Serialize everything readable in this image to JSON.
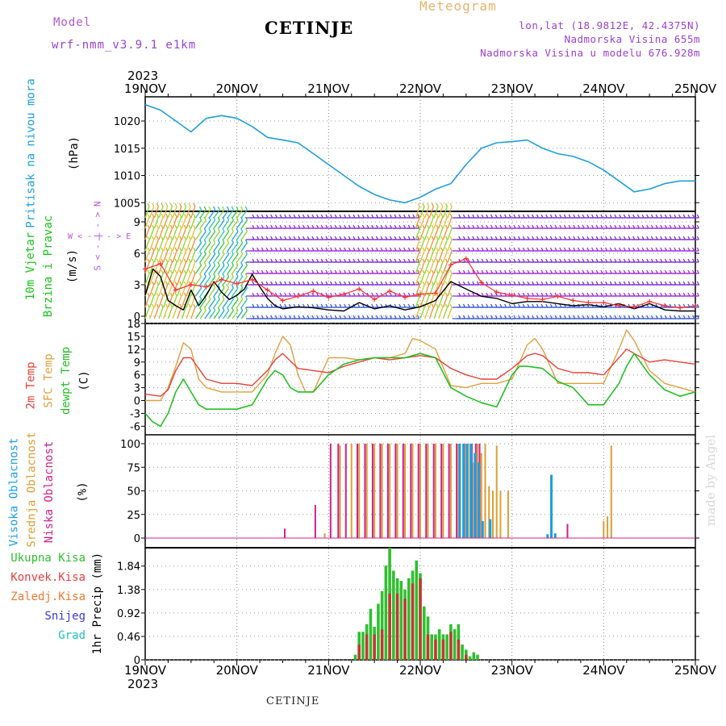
{
  "header": {
    "model_label": "Model",
    "model_name": "wrf-nmm_v3.9.1 e1km",
    "station": "CETINJE",
    "product": "Meteogram",
    "lonlat": "lon,lat (18.9812E, 42.4375N)",
    "elevation": "Nadmorska Visina 655m",
    "model_elevation": "Nadmorska Visina u modelu 676.928m"
  },
  "footer": {
    "station": "CETINJE",
    "credit": "made by Angel"
  },
  "time_axis": {
    "year": "2023",
    "days": [
      "19NOV",
      "20NOV",
      "21NOV",
      "22NOV",
      "23NOV",
      "24NOV",
      "25NOV"
    ]
  },
  "panel_labels": {
    "pressure": [
      {
        "text": "Pritisak na nivou mora",
        "color": "#1e9ee0"
      },
      {
        "text": "(hPa)",
        "color": "#000000"
      }
    ],
    "wind": [
      {
        "text": "10m Vjetar",
        "color": "#19c219"
      },
      {
        "text": "Brzina i Pravac",
        "color": "#19c219"
      },
      {
        "text": "(m/s)",
        "color": "#000000"
      }
    ],
    "wind_rose": [
      "W < - | - > E",
      "S < - | - > N"
    ],
    "temp": [
      {
        "text": "2m Temp",
        "color": "#e8423a"
      },
      {
        "text": "SFC Temp",
        "color": "#e0a040"
      },
      {
        "text": "dewpt Temp",
        "color": "#22c022"
      },
      {
        "text": "(C)",
        "color": "#000000"
      }
    ],
    "cloud": [
      {
        "text": "Visoka Oblacnost",
        "color": "#1e9ee0"
      },
      {
        "text": "Srednja Oblacnost",
        "color": "#d9a035"
      },
      {
        "text": "Niska Oblacnost",
        "color": "#d0208a"
      },
      {
        "text": "(%)",
        "color": "#000000"
      }
    ],
    "precip_axis": "1hr Precip (mm)",
    "precip_legend": [
      {
        "text": "Ukupna Kisa",
        "color": "#2fbf2f"
      },
      {
        "text": "Konvek.Kisa",
        "color": "#e84040"
      },
      {
        "text": "Zaledj.Kisa",
        "color": "#f07830"
      },
      {
        "text": "Snijeg",
        "color": "#3a3ad8"
      },
      {
        "text": "Grad",
        "color": "#20c0c0"
      }
    ]
  },
  "colors": {
    "pressure": "#1e9ee0",
    "t2m": "#e8423a",
    "tsfc": "#e0a040",
    "dew": "#22c022",
    "wind_speed": "#000000",
    "gust": "#ff3030",
    "cloud_high": "#1e9ee0",
    "cloud_mid": "#d9a035",
    "cloud_low": "#d0208a",
    "precip_total": "#2fbf2f",
    "precip_conv": "#c03a30"
  },
  "chart_data": [
    {
      "type": "line",
      "name": "pressure",
      "xlim": [
        0,
        144
      ],
      "ylim": [
        1004,
        1024
      ],
      "yticks": [
        1005,
        1010,
        1015,
        1020
      ],
      "series": [
        {
          "x": [
            0,
            4,
            8,
            12,
            16,
            20,
            24,
            28,
            32,
            36,
            40,
            44,
            48,
            52,
            56,
            60,
            64,
            68,
            72,
            76,
            80,
            84,
            88,
            92,
            96,
            100,
            104,
            108,
            112,
            116,
            120,
            124,
            128,
            132,
            136,
            140,
            144
          ],
          "values": [
            1023,
            1022,
            1020,
            1018,
            1020.5,
            1021,
            1020.5,
            1019,
            1017,
            1016.5,
            1016,
            1014,
            1012,
            1010,
            1008,
            1006.5,
            1005.5,
            1005,
            1006,
            1007.5,
            1008.5,
            1012,
            1015,
            1016,
            1016.2,
            1016.5,
            1015,
            1014,
            1013.5,
            1012.5,
            1011,
            1009,
            1007,
            1007.5,
            1008.5,
            1009,
            1009
          ]
        }
      ]
    },
    {
      "type": "line",
      "name": "wind",
      "xlim": [
        0,
        144
      ],
      "ylim": [
        0,
        10
      ],
      "yticks": [
        0,
        3,
        6,
        9
      ],
      "series": [
        {
          "x": [
            0,
            2,
            4,
            6,
            8,
            10,
            12,
            14,
            16,
            18,
            20,
            22,
            24,
            26,
            28,
            30,
            32,
            34,
            36,
            40,
            44,
            48,
            52,
            56,
            60,
            64,
            68,
            72,
            76,
            80,
            84,
            88,
            92,
            96,
            100,
            104,
            108,
            112,
            116,
            120,
            124,
            128,
            132,
            136,
            140,
            144
          ],
          "values": [
            2,
            4.5,
            3.8,
            1.5,
            1,
            0.6,
            2.5,
            1,
            2,
            3.3,
            2.3,
            1.6,
            2,
            2.6,
            4,
            2.8,
            1.7,
            1,
            0.7,
            0.9,
            0.8,
            0.6,
            0.5,
            1.3,
            0.7,
            1,
            0.6,
            0.9,
            1.5,
            3.3,
            2.6,
            1.9,
            1.7,
            1.2,
            1.4,
            1.4,
            1.2,
            1,
            1.1,
            0.9,
            1.2,
            0.7,
            1.2,
            0.6,
            0.5,
            0.5
          ]
        },
        {
          "x": [
            0,
            4,
            8,
            12,
            16,
            20,
            24,
            28,
            32,
            36,
            40,
            44,
            48,
            52,
            56,
            60,
            64,
            68,
            72,
            76,
            80,
            84,
            88,
            92,
            96,
            100,
            104,
            108,
            112,
            116,
            120,
            124,
            128,
            132,
            136,
            140,
            144
          ],
          "values": [
            4.5,
            5,
            2.5,
            3,
            2.8,
            3.5,
            3.1,
            3.5,
            2.5,
            1.5,
            1.9,
            2.4,
            1.8,
            2.1,
            2.6,
            1.6,
            2.4,
            1.8,
            2.1,
            2.2,
            4.9,
            5.5,
            3.2,
            2.3,
            2,
            1.7,
            1.6,
            1.9,
            1.5,
            1.3,
            1.3,
            1,
            0.9,
            1.4,
            1,
            0.8,
            1
          ]
        }
      ]
    },
    {
      "type": "line",
      "name": "temperature",
      "xlim": [
        0,
        144
      ],
      "ylim": [
        -8,
        18
      ],
      "yticks": [
        -6,
        -3,
        0,
        3,
        6,
        9,
        12,
        15,
        18
      ],
      "series": [
        {
          "x": [
            0,
            4,
            6,
            8,
            10,
            12,
            16,
            20,
            24,
            28,
            32,
            34,
            36,
            40,
            44,
            48,
            52,
            56,
            60,
            64,
            68,
            72,
            76,
            80,
            84,
            88,
            92,
            96,
            100,
            102,
            104,
            108,
            112,
            116,
            120,
            124,
            126,
            128,
            132,
            136,
            140,
            144
          ],
          "values": [
            1.5,
            1,
            2.5,
            7,
            10,
            10,
            5,
            4,
            4,
            3.5,
            7,
            9.5,
            11,
            7.5,
            7,
            6.5,
            8,
            9,
            10,
            9.5,
            10,
            10.5,
            10,
            7.5,
            6,
            5,
            5,
            7.5,
            10.5,
            11,
            10.5,
            7.5,
            6.5,
            6.5,
            6,
            10,
            12,
            11,
            9,
            9.5,
            9,
            8.5
          ]
        },
        {
          "x": [
            0,
            4,
            6,
            8,
            10,
            12,
            14,
            16,
            20,
            24,
            28,
            32,
            34,
            36,
            38,
            40,
            42,
            44,
            48,
            52,
            56,
            60,
            64,
            68,
            70,
            72,
            76,
            80,
            84,
            88,
            92,
            96,
            100,
            102,
            104,
            108,
            112,
            116,
            120,
            124,
            126,
            128,
            132,
            136,
            140,
            144
          ],
          "values": [
            0,
            0,
            3,
            8,
            13.5,
            12,
            5,
            3,
            2,
            2,
            2,
            6,
            11,
            15,
            13,
            6,
            2,
            2,
            10,
            10,
            9.5,
            10,
            10,
            11,
            14.5,
            14,
            12,
            3.5,
            3,
            4,
            4,
            5,
            13,
            14.5,
            12,
            4,
            4,
            4,
            4,
            12,
            16.5,
            14,
            7,
            4,
            3,
            2
          ]
        },
        {
          "x": [
            0,
            2,
            4,
            6,
            8,
            10,
            12,
            14,
            16,
            20,
            24,
            28,
            32,
            34,
            36,
            38,
            40,
            44,
            48,
            52,
            56,
            60,
            64,
            68,
            72,
            76,
            80,
            84,
            88,
            92,
            96,
            98,
            100,
            104,
            108,
            112,
            116,
            120,
            124,
            126,
            128,
            132,
            136,
            140,
            144
          ],
          "values": [
            -3,
            -5,
            -6,
            -3,
            2,
            5,
            2,
            -1,
            -2,
            -2,
            -2,
            -1,
            5,
            7,
            6,
            3,
            2,
            2,
            6,
            8.5,
            9.5,
            10,
            10,
            10,
            11,
            10,
            3,
            1,
            -0.5,
            -1.5,
            6,
            8,
            8,
            7.5,
            4.5,
            3,
            -1,
            -1,
            4,
            8,
            11,
            6,
            2.5,
            1,
            2
          ]
        }
      ]
    },
    {
      "type": "bar",
      "name": "cloud",
      "xlim": [
        0,
        144
      ],
      "ylim": [
        0,
        100
      ],
      "yticks": [
        0,
        25,
        50,
        75,
        100
      ],
      "series": [
        {
          "name": "high",
          "x": [
            82,
            83,
            84,
            85,
            86,
            87,
            88,
            90,
            105,
            106,
            107
          ],
          "values": [
            100,
            100,
            100,
            100,
            90,
            80,
            18,
            20,
            4,
            67,
            5
          ]
        },
        {
          "name": "mid",
          "x": [
            47,
            51,
            54,
            56,
            58,
            60,
            62,
            64,
            66,
            68,
            70,
            72,
            74,
            76,
            78,
            80,
            82,
            84,
            85,
            86,
            87,
            88,
            89,
            90,
            91,
            92,
            93,
            95,
            120,
            121,
            122
          ],
          "values": [
            5,
            98,
            100,
            100,
            100,
            100,
            100,
            100,
            100,
            100,
            100,
            100,
            100,
            100,
            100,
            100,
            100,
            100,
            100,
            80,
            100,
            90,
            100,
            55,
            50,
            98,
            50,
            50,
            18,
            23,
            98
          ]
        },
        {
          "name": "low",
          "x": [
            36,
            44,
            48,
            50,
            52,
            55,
            57,
            59,
            61,
            63,
            65,
            67,
            69,
            71,
            73,
            75,
            77,
            79,
            81,
            83,
            85,
            86,
            87,
            110
          ],
          "values": [
            10,
            35,
            100,
            100,
            100,
            100,
            100,
            100,
            100,
            100,
            100,
            100,
            100,
            100,
            100,
            100,
            100,
            100,
            100,
            100,
            100,
            100,
            100,
            15
          ]
        }
      ]
    },
    {
      "type": "bar",
      "name": "precip",
      "xlim": [
        0,
        144
      ],
      "ylim": [
        0,
        2.2
      ],
      "yticks": [
        0,
        0.46,
        0.92,
        1.38,
        1.84
      ],
      "series": [
        {
          "name": "total",
          "x": [
            55,
            56,
            57,
            58,
            59,
            60,
            61,
            62,
            63,
            64,
            65,
            66,
            67,
            68,
            69,
            70,
            71,
            72,
            73,
            74,
            75,
            76,
            77,
            78,
            79,
            80,
            81,
            82,
            83,
            84,
            85,
            86,
            87
          ],
          "values": [
            0.1,
            0.55,
            0.55,
            0.7,
            1.0,
            0.65,
            1.1,
            1.35,
            1.85,
            2.2,
            1.75,
            1.6,
            1.55,
            1.38,
            1.6,
            1.75,
            1.95,
            1.7,
            1.05,
            0.85,
            0.5,
            0.5,
            0.6,
            0.5,
            0.5,
            0.7,
            0.6,
            0.7,
            0.3,
            0.2,
            0.07,
            0.15,
            0.1
          ]
        },
        {
          "name": "convective",
          "x": [
            56,
            58,
            60,
            62,
            64,
            66,
            68,
            70,
            72,
            74,
            76,
            78,
            80,
            82,
            84
          ],
          "values": [
            0.3,
            0.5,
            0.5,
            0.6,
            1.3,
            1.3,
            1.2,
            1.5,
            1.6,
            0.5,
            0.4,
            0.4,
            0.55,
            0.4,
            0.1
          ]
        }
      ]
    }
  ]
}
